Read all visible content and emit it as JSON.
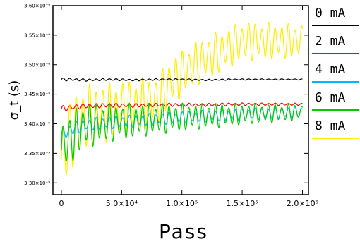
{
  "chart_data": {
    "type": "line",
    "xlabel": "Pass",
    "ylabel": "σ_t (s)",
    "xlim": [
      -7000,
      205000
    ],
    "ylim": [
      3.28e-09,
      3.6e-09
    ],
    "x_ticks": [
      {
        "value": 0,
        "label": "0"
      },
      {
        "value": 50000,
        "label": "5.0×10⁴"
      },
      {
        "value": 100000,
        "label": "1.0×10⁵"
      },
      {
        "value": 150000,
        "label": "1.5×10⁵"
      },
      {
        "value": 200000,
        "label": "2.0×10⁵"
      }
    ],
    "y_ticks": [
      {
        "value": 3.3e-09,
        "label": "3.30×10⁻⁹"
      },
      {
        "value": 3.35e-09,
        "label": "3.35×10⁻⁹"
      },
      {
        "value": 3.4e-09,
        "label": "3.40×10⁻⁹"
      },
      {
        "value": 3.45e-09,
        "label": "3.45×10⁻⁹"
      },
      {
        "value": 3.5e-09,
        "label": "3.50×10⁻⁹"
      },
      {
        "value": 3.55e-09,
        "label": "3.55×10⁻⁹"
      },
      {
        "value": 3.6e-09,
        "label": "3.60×10⁻⁹"
      }
    ],
    "grid": false,
    "legend_placement": "right",
    "series": [
      {
        "name": "0 mA",
        "color": "#000000",
        "x": [
          0,
          10000,
          20000,
          40000,
          60000,
          80000,
          100000,
          120000,
          140000,
          160000,
          180000,
          200000
        ],
        "y": [
          3.475e-09,
          3.475e-09,
          3.474e-09,
          3.475e-09,
          3.474e-09,
          3.475e-09,
          3.475e-09,
          3.474e-09,
          3.475e-09,
          3.475e-09,
          3.475e-09,
          3.475e-09
        ],
        "oscillation": [
          3e-12,
          1e-12
        ]
      },
      {
        "name": "2 mA",
        "color": "#ff0000",
        "x": [
          0,
          10000,
          20000,
          40000,
          60000,
          80000,
          100000,
          120000,
          140000,
          160000,
          180000,
          200000
        ],
        "y": [
          3.425e-09,
          3.428e-09,
          3.43e-09,
          3.431e-09,
          3.431e-09,
          3.432e-09,
          3.432e-09,
          3.432e-09,
          3.433e-09,
          3.433e-09,
          3.433e-09,
          3.433e-09
        ],
        "oscillation": [
          6e-12,
          2e-12
        ]
      },
      {
        "name": "4 mA",
        "color": "#00b7ff",
        "x": [
          0,
          10000,
          20000,
          40000,
          60000,
          80000,
          100000,
          120000,
          140000,
          160000,
          180000,
          200000
        ],
        "y": [
          3.38e-09,
          3.392e-09,
          3.398e-09,
          3.402e-09,
          3.405e-09,
          3.408e-09,
          3.411e-09,
          3.413e-09,
          3.415e-09,
          3.417e-09,
          3.418e-09,
          3.42e-09
        ],
        "oscillation": [
          1.2e-11,
          1e-11
        ]
      },
      {
        "name": "6 mA",
        "color": "#00cc00",
        "x": [
          0,
          10000,
          20000,
          40000,
          60000,
          80000,
          100000,
          120000,
          140000,
          160000,
          180000,
          200000
        ],
        "y": [
          3.355e-09,
          3.38e-09,
          3.398e-09,
          3.402e-09,
          3.405e-09,
          3.408e-09,
          3.411e-09,
          3.413e-09,
          3.415e-09,
          3.417e-09,
          3.418e-09,
          3.42e-09
        ],
        "oscillation": [
          6e-11,
          1.4e-11
        ]
      },
      {
        "name": "8 mA",
        "color": "#ffee00",
        "x": [
          0,
          10000,
          20000,
          40000,
          60000,
          80000,
          90000,
          110000,
          130000,
          150000,
          170000,
          190000,
          200000
        ],
        "y": [
          3.34e-09,
          3.39e-09,
          3.41e-09,
          3.42e-09,
          3.43e-09,
          3.44e-09,
          3.47e-09,
          3.5e-09,
          3.52e-09,
          3.54e-09,
          3.54e-09,
          3.54e-09,
          3.54e-09
        ],
        "oscillation": [
          8e-11,
          3e-11
        ]
      }
    ]
  }
}
